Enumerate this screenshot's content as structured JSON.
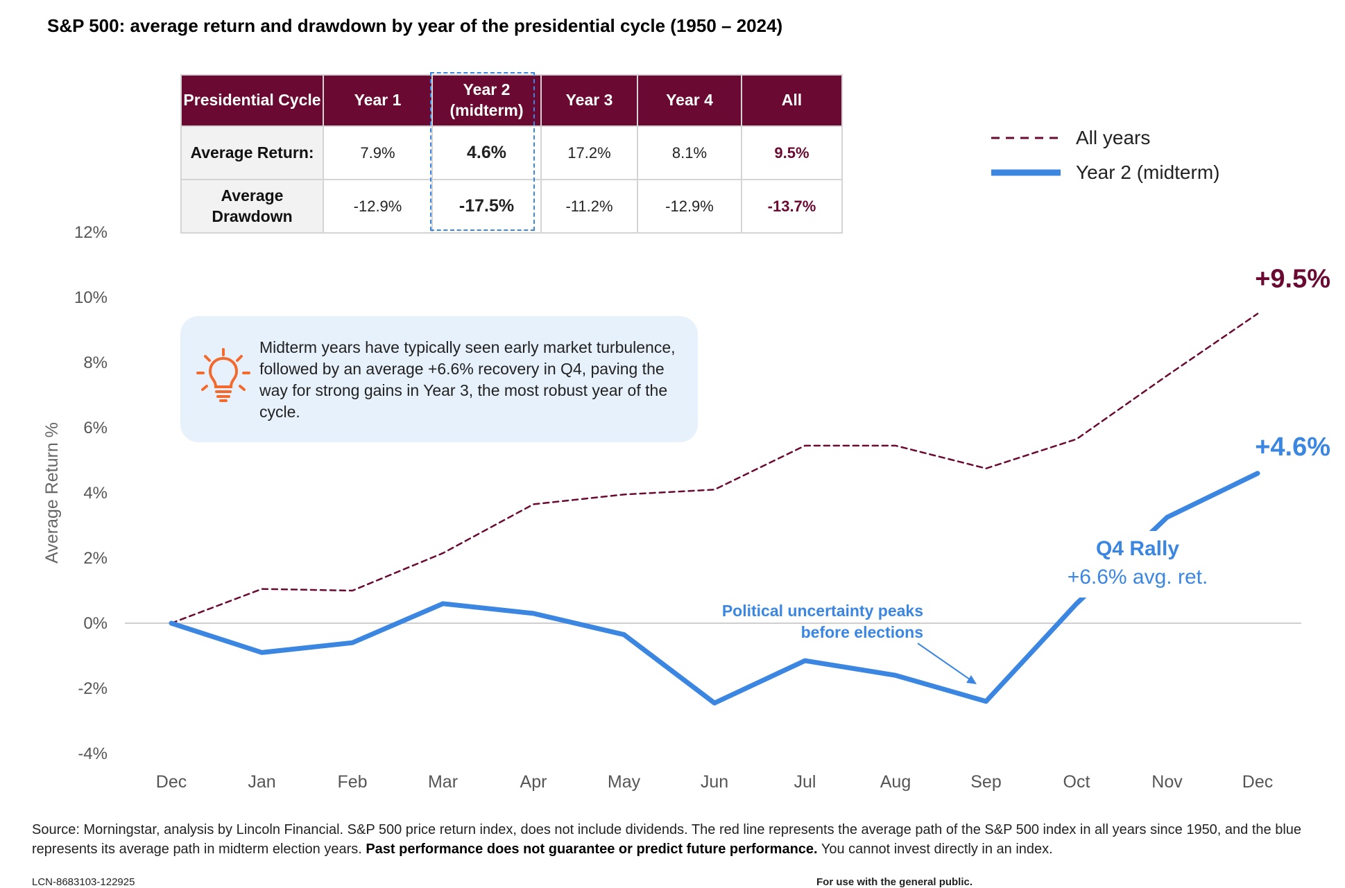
{
  "title": "S&P 500: average return and drawdown by year of the presidential cycle (1950 – 2024)",
  "table": {
    "headers": [
      "Presidential Cycle",
      "Year 1",
      "Year 2 (midterm)",
      "Year 3",
      "Year 4",
      "All"
    ],
    "rows": [
      {
        "label": "Average Return:",
        "values": [
          "7.9%",
          "4.6%",
          "17.2%",
          "8.1%",
          "9.5%"
        ]
      },
      {
        "label": "Average Drawdown",
        "values": [
          "-12.9%",
          "-17.5%",
          "-11.2%",
          "-12.9%",
          "-13.7%"
        ]
      }
    ]
  },
  "legend": {
    "all_years": "All years",
    "midterm": "Year 2 (midterm)"
  },
  "callout": {
    "text": "Midterm years have typically seen early market turbulence, followed by an average +6.6% recovery in Q4, paving the way for strong gains in Year 3, the most robust year of the cycle.",
    "icon": "lightbulb-icon"
  },
  "colors": {
    "maroon": "#6a0a32",
    "blue": "#3a86e0",
    "callout_bg": "#e7f1fb"
  },
  "chart_data": {
    "type": "line",
    "x": [
      "Dec",
      "Jan",
      "Feb",
      "Mar",
      "Apr",
      "May",
      "Jun",
      "Jul",
      "Aug",
      "Sep",
      "Oct",
      "Nov",
      "Dec"
    ],
    "ylabel": "Average Return %",
    "ylim": [
      -4,
      12
    ],
    "yticks": [
      -4,
      -2,
      0,
      2,
      4,
      6,
      8,
      10,
      12
    ],
    "ytick_labels": [
      "-4%",
      "-2%",
      "0%",
      "2%",
      "4%",
      "6%",
      "8%",
      "10%",
      "12%"
    ],
    "series": [
      {
        "name": "All years",
        "style": "dashed",
        "color": "#6a0a32",
        "values": [
          0,
          1.05,
          1.0,
          2.15,
          3.65,
          3.95,
          4.1,
          5.45,
          5.45,
          4.75,
          5.65,
          7.6,
          9.5
        ]
      },
      {
        "name": "Year 2 (midterm)",
        "style": "solid",
        "color": "#3a86e0",
        "values": [
          0,
          -0.9,
          -0.6,
          0.6,
          0.3,
          -0.35,
          -2.45,
          -1.15,
          -1.6,
          -2.4,
          0.6,
          3.25,
          4.6
        ]
      }
    ],
    "end_labels": [
      "+9.5%",
      "+4.6%"
    ],
    "annotations": {
      "political": "Political uncertainty peaks before elections",
      "q4_title": "Q4 Rally",
      "q4_sub": "+6.6% avg. ret."
    }
  },
  "footer": {
    "source": "Source: Morningstar, analysis by Lincoln Financial. S&P 500 price return index, does not include dividends.  The red line represents the average path of the S&P 500 index in all years since 1950, and the blue represents its average path in midterm election years.",
    "disclaimer": "Past performance does not guarantee or predict future performance.",
    "tail": "You cannot invest directly in an index.",
    "code": "LCN-8683103-122925",
    "audience": "For use with the general public."
  }
}
